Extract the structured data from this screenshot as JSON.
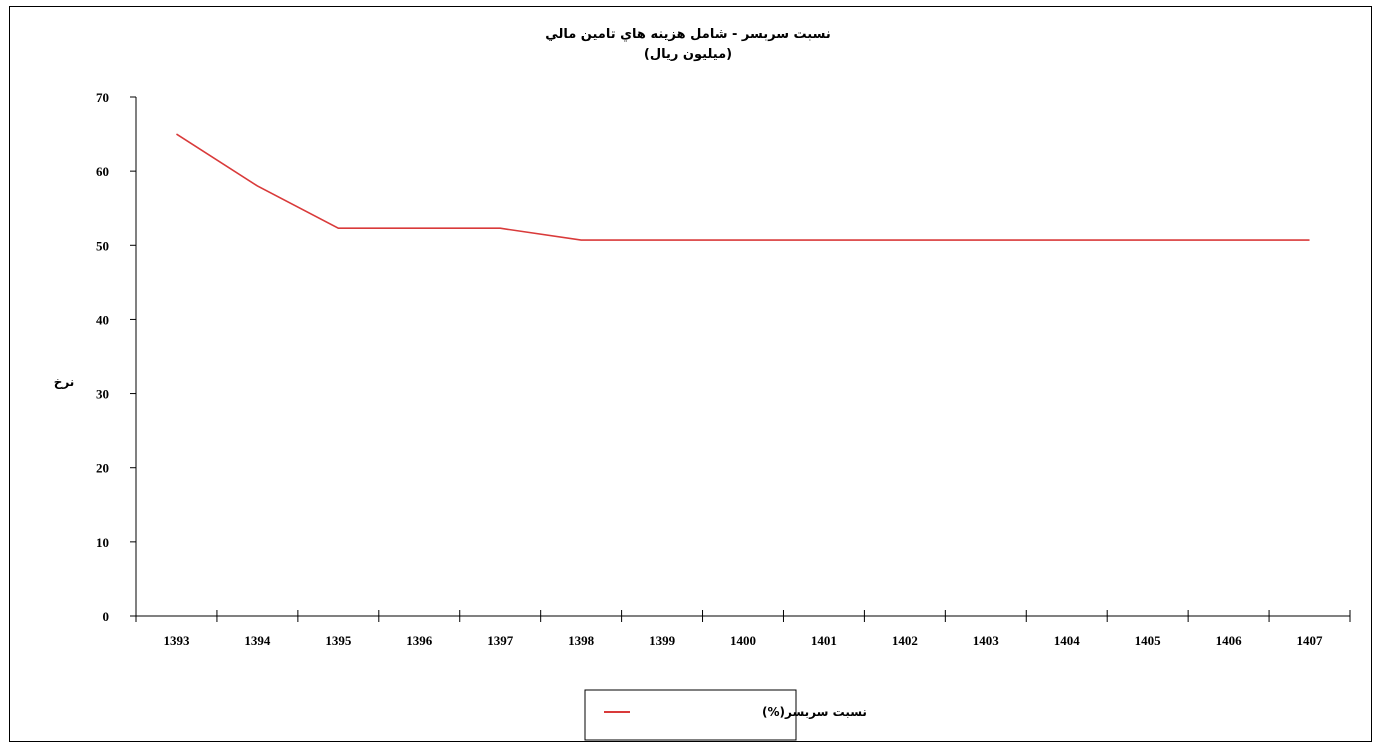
{
  "chart_data": {
    "type": "line",
    "title": "نسبت سربسر  -  شامل هزینه هاي تامین مالي",
    "subtitle": "(میلیون ریال)",
    "xlabel": "",
    "ylabel": "نرخ",
    "ylim": [
      0,
      70
    ],
    "yticks": [
      0,
      10,
      20,
      30,
      40,
      50,
      60,
      70
    ],
    "categories": [
      "1393",
      "1394",
      "1395",
      "1396",
      "1397",
      "1398",
      "1399",
      "1400",
      "1401",
      "1402",
      "1403",
      "1404",
      "1405",
      "1406",
      "1407"
    ],
    "series": [
      {
        "name": "نسبت سربسر(%)",
        "color": "#d93a3a",
        "values": [
          65,
          58,
          52.3,
          52.3,
          52.3,
          50.7,
          50.7,
          50.7,
          50.7,
          50.7,
          50.7,
          50.7,
          50.7,
          50.7,
          50.7
        ]
      }
    ],
    "grid": false,
    "legend_position": "bottom-center"
  }
}
